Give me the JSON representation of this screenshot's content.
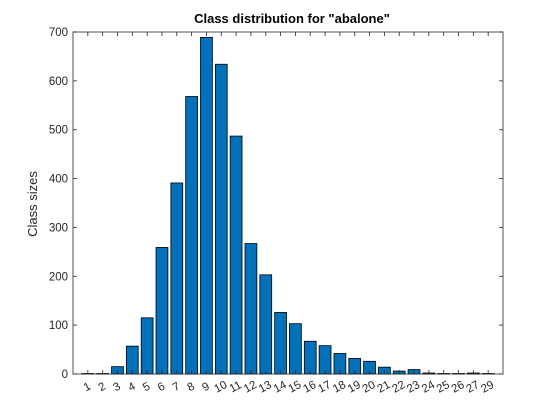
{
  "chart_data": {
    "type": "bar",
    "title": "Class distribution for \"abalone\"",
    "xlabel": "",
    "ylabel": "Class sizes",
    "categories": [
      "1",
      "2",
      "3",
      "4",
      "5",
      "6",
      "7",
      "8",
      "9",
      "10",
      "11",
      "12",
      "13",
      "14",
      "15",
      "16",
      "17",
      "18",
      "19",
      "20",
      "21",
      "22",
      "23",
      "24",
      "25",
      "26",
      "27",
      "29"
    ],
    "values": [
      1,
      1,
      15,
      57,
      115,
      259,
      391,
      568,
      689,
      634,
      487,
      267,
      203,
      126,
      103,
      67,
      58,
      42,
      32,
      26,
      14,
      6,
      9,
      2,
      1,
      1,
      2,
      1
    ],
    "ylim": [
      0,
      700
    ],
    "yticks": [
      0,
      100,
      200,
      300,
      400,
      500,
      600,
      700
    ],
    "bar_color": "#0072bd",
    "edge_color": "#000000",
    "grid": false
  }
}
